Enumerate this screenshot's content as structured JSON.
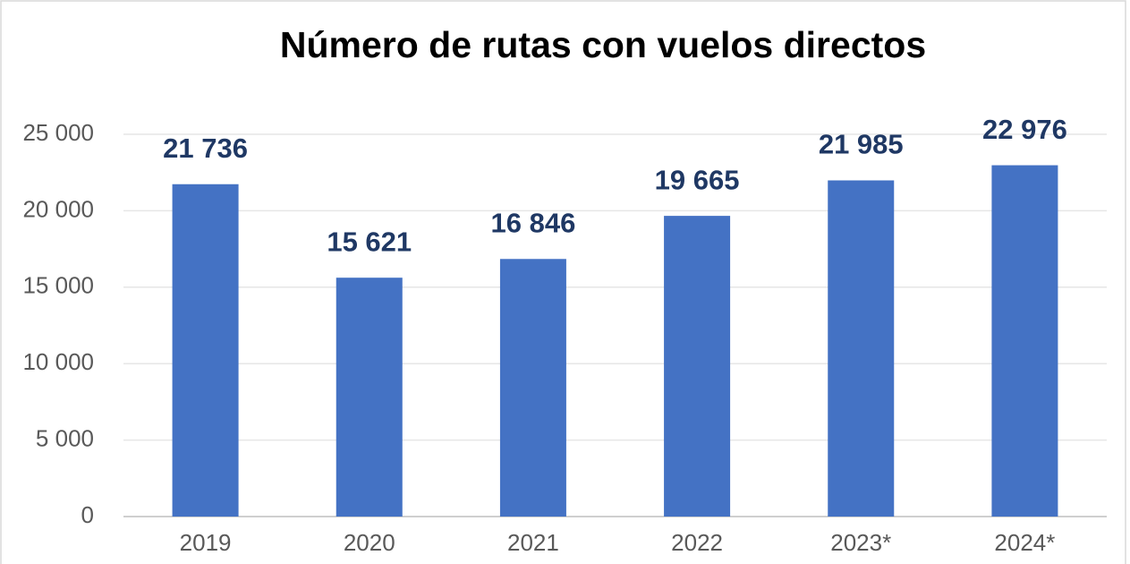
{
  "chart_data": {
    "type": "bar",
    "title": "Número de rutas con vuelos directos",
    "categories": [
      "2019",
      "2020",
      "2021",
      "2022",
      "2023*",
      "2024*"
    ],
    "values": [
      21736,
      15621,
      16846,
      19665,
      21985,
      22976
    ],
    "value_labels": [
      "21 736",
      "15 621",
      "16 846",
      "19 665",
      "21 985",
      "22 976"
    ],
    "color": "#4472c4",
    "ylim": [
      0,
      25000
    ],
    "yticks": [
      0,
      {
        "value": 5000,
        "label": "5 000"
      },
      {
        "value": 10000,
        "label": "10 000"
      },
      {
        "value": 15000,
        "label": "15 000"
      },
      {
        "value": 20000,
        "label": "20 000"
      },
      {
        "value": 25000,
        "label": "25 000"
      }
    ],
    "grid": true
  }
}
